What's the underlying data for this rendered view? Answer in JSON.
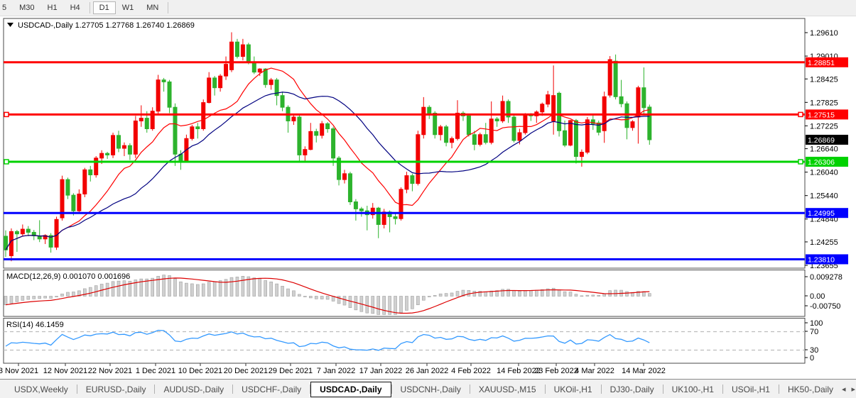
{
  "toolbar": {
    "timeframes": [
      {
        "label": "5",
        "active": false
      },
      {
        "label": "M30",
        "active": false
      },
      {
        "label": "H1",
        "active": false
      },
      {
        "label": "H4",
        "active": false
      },
      {
        "label": "D1",
        "active": true
      },
      {
        "label": "W1",
        "active": false
      },
      {
        "label": "MN",
        "active": false
      }
    ]
  },
  "chart": {
    "legend": {
      "symbol": "USDCAD-,Daily",
      "open": "1.27705",
      "high": "1.27768",
      "low": "1.26740",
      "close": "1.26869"
    },
    "price_axis_labels": [
      "1.29610",
      "1.29010",
      "1.28425",
      "1.27825",
      "1.27225",
      "1.26640",
      "1.26040",
      "1.25440",
      "1.24840",
      "1.24255",
      "1.23655"
    ],
    "hlines": [
      {
        "price": 1.28851,
        "label": "1.28851",
        "color": "#ff0000",
        "selected": false
      },
      {
        "price": 1.27515,
        "label": "1.27515",
        "color": "#ff0000",
        "selected": true
      },
      {
        "price": 1.26306,
        "label": "1.26306",
        "color": "#00d200",
        "selected": true
      },
      {
        "price": 1.24995,
        "label": "1.24995",
        "color": "#0000ff",
        "selected": false
      },
      {
        "price": 1.2381,
        "label": "1.23810",
        "color": "#0000ff",
        "selected": false
      }
    ],
    "current_price": {
      "value": 1.26869,
      "label": "1.26869",
      "badge_color": "#000000"
    },
    "date_axis": {
      "labels": [
        "3 Nov 2021",
        "12 Nov 2021",
        "22 Nov 2021",
        "1 Dec 2021",
        "10 Dec 2021",
        "20 Dec 2021",
        "29 Dec 2021",
        "7 Jan 2022",
        "17 Jan 2022",
        "26 Jan 2022",
        "4 Feb 2022",
        "14 Feb 2022",
        "23 Feb 2022",
        "4 Mar 2022",
        "14 Mar 2022"
      ],
      "centers": [
        26,
        92,
        155,
        219,
        282,
        346,
        409,
        473,
        536,
        601,
        663,
        730,
        783,
        837,
        906
      ]
    },
    "colors": {
      "bull_candle": "#f20000",
      "bear_candle": "#2db32d",
      "ma_fast": "#ff0000",
      "ma_slow": "#000080",
      "macd_hist": "#d0d0d0",
      "macd_signal": "#dd0000",
      "rsi_line": "#3399ff"
    }
  },
  "chart_data": {
    "type": "candlestick",
    "title": "USDCAD-,Daily",
    "ohlc_header": [
      "1.27705",
      "1.27768",
      "1.26740",
      "1.26869"
    ],
    "bars": [
      [
        1.244,
        1.2455,
        1.2387,
        1.2405
      ],
      [
        1.239,
        1.246,
        1.2376,
        1.2452
      ],
      [
        1.2452,
        1.2456,
        1.24,
        1.2446
      ],
      [
        1.2446,
        1.247,
        1.244,
        1.2458
      ],
      [
        1.2458,
        1.2466,
        1.244,
        1.245
      ],
      [
        1.245,
        1.2456,
        1.243,
        1.2441
      ],
      [
        1.2441,
        1.2481,
        1.2425,
        1.2433
      ],
      [
        1.2433,
        1.2445,
        1.242,
        1.2442
      ],
      [
        1.2442,
        1.2448,
        1.2398,
        1.2412
      ],
      [
        1.2412,
        1.249,
        1.2405,
        1.2483
      ],
      [
        1.2487,
        1.2595,
        1.248,
        1.2585
      ],
      [
        1.2585,
        1.259,
        1.2535,
        1.2545
      ],
      [
        1.2545,
        1.255,
        1.2493,
        1.2505
      ],
      [
        1.2505,
        1.256,
        1.25,
        1.2548
      ],
      [
        1.2548,
        1.2615,
        1.254,
        1.261
      ],
      [
        1.261,
        1.262,
        1.258,
        1.2597
      ],
      [
        1.2597,
        1.2645,
        1.259,
        1.264
      ],
      [
        1.264,
        1.266,
        1.2625,
        1.2652
      ],
      [
        1.2652,
        1.2656,
        1.2638,
        1.2648
      ],
      [
        1.2648,
        1.2705,
        1.264,
        1.2698
      ],
      [
        1.2698,
        1.271,
        1.2655,
        1.2665
      ],
      [
        1.2665,
        1.268,
        1.2645,
        1.2672
      ],
      [
        1.2672,
        1.2678,
        1.2635,
        1.265
      ],
      [
        1.265,
        1.2748,
        1.264,
        1.2735
      ],
      [
        1.2735,
        1.2775,
        1.272,
        1.2742
      ],
      [
        1.2742,
        1.276,
        1.2705,
        1.2715
      ],
      [
        1.2715,
        1.277,
        1.271,
        1.276
      ],
      [
        1.276,
        1.2853,
        1.275,
        1.284
      ],
      [
        1.284,
        1.2845,
        1.281,
        1.2835
      ],
      [
        1.2835,
        1.284,
        1.2755,
        1.277
      ],
      [
        1.277,
        1.278,
        1.262,
        1.265
      ],
      [
        1.265,
        1.266,
        1.261,
        1.2632
      ],
      [
        1.2632,
        1.27,
        1.263,
        1.269
      ],
      [
        1.269,
        1.2725,
        1.2685,
        1.272
      ],
      [
        1.272,
        1.273,
        1.269,
        1.2715
      ],
      [
        1.2715,
        1.279,
        1.271,
        1.2782
      ],
      [
        1.2782,
        1.286,
        1.278,
        1.2845
      ],
      [
        1.2845,
        1.285,
        1.28,
        1.282
      ],
      [
        1.282,
        1.2855,
        1.281,
        1.285
      ],
      [
        1.285,
        1.29,
        1.284,
        1.288
      ],
      [
        1.2866,
        1.2962,
        1.286,
        1.2937
      ],
      [
        1.2937,
        1.2945,
        1.2895,
        1.29
      ],
      [
        1.29,
        1.2945,
        1.289,
        1.293
      ],
      [
        1.293,
        1.2935,
        1.288,
        1.2885
      ],
      [
        1.2885,
        1.29,
        1.2855,
        1.286
      ],
      [
        1.286,
        1.287,
        1.285,
        1.2868
      ],
      [
        1.2868,
        1.287,
        1.282,
        1.2828
      ],
      [
        1.2828,
        1.2845,
        1.2815,
        1.284
      ],
      [
        1.284,
        1.2845,
        1.2775,
        1.28
      ],
      [
        1.28,
        1.281,
        1.276,
        1.277
      ],
      [
        1.277,
        1.2775,
        1.2705,
        1.2735
      ],
      [
        1.2735,
        1.275,
        1.2725,
        1.2745
      ],
      [
        1.2745,
        1.275,
        1.2628,
        1.2648
      ],
      [
        1.2648,
        1.267,
        1.263,
        1.2662
      ],
      [
        1.2662,
        1.273,
        1.266,
        1.2708
      ],
      [
        1.2708,
        1.2715,
        1.268,
        1.2698
      ],
      [
        1.2698,
        1.2735,
        1.269,
        1.2728
      ],
      [
        1.2728,
        1.2732,
        1.2705,
        1.2715
      ],
      [
        1.2715,
        1.272,
        1.262,
        1.264
      ],
      [
        1.264,
        1.2645,
        1.257,
        1.2585
      ],
      [
        1.2585,
        1.261,
        1.2575,
        1.26
      ],
      [
        1.26,
        1.2605,
        1.252,
        1.2528
      ],
      [
        1.2528,
        1.2535,
        1.248,
        1.251
      ],
      [
        1.251,
        1.2515,
        1.249,
        1.2505
      ],
      [
        1.2505,
        1.2518,
        1.2455,
        1.2495
      ],
      [
        1.2495,
        1.2525,
        1.2485,
        1.2512
      ],
      [
        1.2512,
        1.2515,
        1.2435,
        1.247
      ],
      [
        1.247,
        1.251,
        1.246,
        1.2502
      ],
      [
        1.2502,
        1.2506,
        1.245,
        1.249
      ],
      [
        1.249,
        1.2498,
        1.247,
        1.2485
      ],
      [
        1.2485,
        1.2565,
        1.248,
        1.256
      ],
      [
        1.256,
        1.2605,
        1.255,
        1.2595
      ],
      [
        1.2595,
        1.26,
        1.2555,
        1.2575
      ],
      [
        1.2575,
        1.271,
        1.257,
        1.27
      ],
      [
        1.27,
        1.2796,
        1.269,
        1.277
      ],
      [
        1.277,
        1.2775,
        1.274,
        1.2755
      ],
      [
        1.2755,
        1.276,
        1.269,
        1.27
      ],
      [
        1.27,
        1.2725,
        1.2685,
        1.272
      ],
      [
        1.272,
        1.2725,
        1.267,
        1.268
      ],
      [
        1.268,
        1.2695,
        1.2665,
        1.269
      ],
      [
        1.269,
        1.2788,
        1.2685,
        1.2755
      ],
      [
        1.2755,
        1.276,
        1.2735,
        1.2748
      ],
      [
        1.2748,
        1.275,
        1.2695,
        1.27
      ],
      [
        1.27,
        1.271,
        1.266,
        1.2675
      ],
      [
        1.2675,
        1.2705,
        1.267,
        1.27
      ],
      [
        1.27,
        1.273,
        1.2675,
        1.268
      ],
      [
        1.268,
        1.2785,
        1.2675,
        1.274
      ],
      [
        1.274,
        1.2745,
        1.272,
        1.2735
      ],
      [
        1.2735,
        1.28,
        1.273,
        1.2785
      ],
      [
        1.2785,
        1.279,
        1.273,
        1.2745
      ],
      [
        1.2745,
        1.275,
        1.268,
        1.2685
      ],
      [
        1.2685,
        1.2715,
        1.2675,
        1.2705
      ],
      [
        1.2705,
        1.2755,
        1.27,
        1.275
      ],
      [
        1.275,
        1.2755,
        1.2735,
        1.2748
      ],
      [
        1.2748,
        1.2762,
        1.273,
        1.2758
      ],
      [
        1.2758,
        1.2782,
        1.2748,
        1.2778
      ],
      [
        1.2778,
        1.2812,
        1.277,
        1.2802
      ],
      [
        1.2735,
        1.2877,
        1.27,
        1.28
      ],
      [
        1.2806,
        1.281,
        1.2695,
        1.271
      ],
      [
        1.271,
        1.2736,
        1.2668,
        1.2673
      ],
      [
        1.2673,
        1.2738,
        1.267,
        1.2736
      ],
      [
        1.2736,
        1.274,
        1.2626,
        1.2644
      ],
      [
        1.2644,
        1.2662,
        1.2618,
        1.2655
      ],
      [
        1.2655,
        1.2745,
        1.265,
        1.2738
      ],
      [
        1.2738,
        1.2752,
        1.2712,
        1.2728
      ],
      [
        1.273,
        1.2736,
        1.2698,
        1.2706
      ],
      [
        1.271,
        1.281,
        1.2679,
        1.2797
      ],
      [
        1.2801,
        1.2901,
        1.2795,
        1.2892
      ],
      [
        1.2888,
        1.2905,
        1.279,
        1.2797
      ],
      [
        1.2797,
        1.284,
        1.277,
        1.2779
      ],
      [
        1.2779,
        1.2785,
        1.2688,
        1.2718
      ],
      [
        1.2718,
        1.2737,
        1.271,
        1.2733
      ],
      [
        1.2745,
        1.2825,
        1.2677,
        1.282
      ],
      [
        1.282,
        1.2872,
        1.275,
        1.2769
      ],
      [
        1.27705,
        1.27768,
        1.2674,
        1.26869
      ]
    ],
    "overlays": [
      {
        "name": "ma-fast",
        "type": "sma",
        "period": 12,
        "color": "#ff0000"
      },
      {
        "name": "ma-slow",
        "type": "sma",
        "period": 24,
        "color": "#000080"
      }
    ],
    "indicators": [
      {
        "name": "MACD",
        "params": "12,26,9",
        "value_main": "0.001070",
        "value_signal": "0.001696",
        "axis_labels": [
          "0.009278",
          "0.00",
          "-0.00750"
        ]
      },
      {
        "name": "RSI",
        "params": "14",
        "value": "46.1459",
        "axis_labels": [
          "100",
          "70",
          "30",
          "0"
        ],
        "levels": [
          70,
          30
        ]
      }
    ]
  },
  "tabs": {
    "items": [
      {
        "label": "USDX,Weekly",
        "active": false
      },
      {
        "label": "EURUSD-,Daily",
        "active": false
      },
      {
        "label": "AUDUSD-,Daily",
        "active": false
      },
      {
        "label": "USDCHF-,Daily",
        "active": false
      },
      {
        "label": "USDCAD-,Daily",
        "active": true
      },
      {
        "label": "USDCNH-,Daily",
        "active": false
      },
      {
        "label": "XAUUSD-,M15",
        "active": false
      },
      {
        "label": "UKOil-,H1",
        "active": false
      },
      {
        "label": "DJ30-,Daily",
        "active": false
      },
      {
        "label": "UK100-,H1",
        "active": false
      },
      {
        "label": "USOil-,H1",
        "active": false
      },
      {
        "label": "HK50-,Daily",
        "active": false
      }
    ],
    "arrow_left": "◂",
    "arrow_right": "▸"
  }
}
